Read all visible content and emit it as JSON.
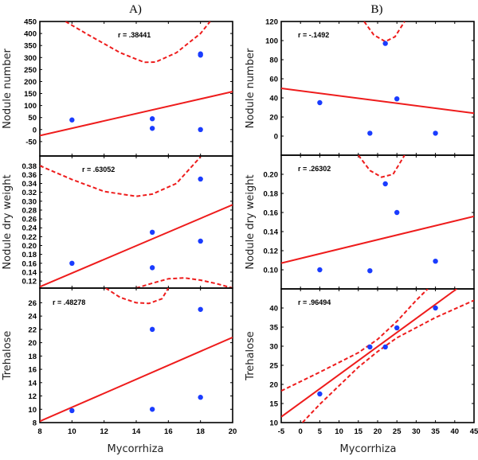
{
  "chart_data": {
    "type": "scatter",
    "columns": [
      {
        "title": "A)",
        "xlabel": "Mycorrhiza",
        "xlim": [
          8,
          20
        ],
        "xticks": [
          8,
          10,
          12,
          14,
          16,
          18,
          20
        ],
        "panels": [
          {
            "ylabel": "Nodule number",
            "ylim": [
              -110,
              450
            ],
            "yticks": [
              -50,
              0,
              50,
              100,
              150,
              200,
              250,
              300,
              350,
              400,
              450
            ],
            "r_label": "r = .38441",
            "points": [
              [
                10,
                40
              ],
              [
                15,
                45
              ],
              [
                15,
                5
              ],
              [
                18,
                315
              ],
              [
                18,
                310
              ],
              [
                18,
                0
              ]
            ],
            "fit_line": [
              [
                8,
                -25
              ],
              [
                20,
                158
              ]
            ],
            "ci_upper": [
              [
                9.6,
                450
              ],
              [
                11,
                395
              ],
              [
                13,
                320
              ],
              [
                14.5,
                280
              ],
              [
                15.2,
                281
              ],
              [
                16.5,
                320
              ],
              [
                18,
                400
              ],
              [
                18.6,
                450
              ]
            ],
            "ci_lower": []
          },
          {
            "ylabel": "Nodule dry weight",
            "ylim": [
              0.104,
              0.402
            ],
            "yticks": [
              0.12,
              0.14,
              0.16,
              0.18,
              0.2,
              0.22,
              0.24,
              0.26,
              0.28,
              0.3,
              0.32,
              0.34,
              0.36,
              0.38
            ],
            "tick_labels": [
              "0.12",
              "0.14",
              "0.16",
              "0.18",
              "0.20",
              "0.22",
              "0.24",
              "0.26",
              "0.28",
              "0.30",
              "0.32",
              "0.34",
              "0.36",
              "0.38"
            ],
            "r_label": "r = .63052",
            "points": [
              [
                10,
                0.16
              ],
              [
                15,
                0.23
              ],
              [
                15,
                0.15
              ],
              [
                18,
                0.35
              ],
              [
                18,
                0.21
              ]
            ],
            "fit_line": [
              [
                8,
                0.107
              ],
              [
                20,
                0.292
              ]
            ],
            "ci_upper": [
              [
                8,
                0.38
              ],
              [
                10,
                0.349
              ],
              [
                12,
                0.322
              ],
              [
                14,
                0.311
              ],
              [
                15,
                0.316
              ],
              [
                16.5,
                0.34
              ],
              [
                18,
                0.4
              ]
            ],
            "ci_lower": [
              [
                14,
                0.104
              ],
              [
                15,
                0.115
              ],
              [
                16,
                0.125
              ],
              [
                17,
                0.127
              ],
              [
                18,
                0.122
              ],
              [
                19,
                0.114
              ],
              [
                20,
                0.104
              ]
            ]
          },
          {
            "ylabel": "Trehalose",
            "ylim": [
              8,
              28.2
            ],
            "yticks": [
              8,
              10,
              12,
              14,
              16,
              18,
              20,
              22,
              24,
              26
            ],
            "r_label": "r = .48278",
            "points": [
              [
                10,
                9.8
              ],
              [
                15,
                22
              ],
              [
                15,
                10
              ],
              [
                18,
                25
              ],
              [
                18,
                11.8
              ]
            ],
            "fit_line": [
              [
                8,
                8.2
              ],
              [
                20,
                20.8
              ]
            ],
            "ci_upper": [
              [
                12.1,
                28.2
              ],
              [
                13,
                26.8
              ],
              [
                14,
                26.0
              ],
              [
                14.8,
                25.9
              ],
              [
                15.6,
                26.6
              ],
              [
                16,
                28.2
              ]
            ],
            "ci_lower": []
          }
        ]
      },
      {
        "title": "B)",
        "xlabel": "Mycorrhiza",
        "xlim": [
          -5,
          45
        ],
        "xticks": [
          -5,
          0,
          5,
          10,
          15,
          20,
          25,
          30,
          35,
          40,
          45
        ],
        "panels": [
          {
            "ylabel": "Nodule number",
            "ylim": [
              -20,
              120
            ],
            "yticks": [
              0,
              20,
              40,
              60,
              80,
              100,
              120
            ],
            "r_label": "r = -.1492",
            "points": [
              [
                5,
                35
              ],
              [
                18,
                3
              ],
              [
                22,
                97
              ],
              [
                25,
                39
              ],
              [
                35,
                3
              ]
            ],
            "fit_line": [
              [
                -5,
                50
              ],
              [
                45,
                24
              ]
            ],
            "ci_upper": [
              [
                16.5,
                120
              ],
              [
                19,
                106
              ],
              [
                22,
                99
              ],
              [
                24.5,
                104
              ],
              [
                27,
                120
              ]
            ],
            "ci_lower": []
          },
          {
            "ylabel": "Nodule dry weight",
            "ylim": [
              0.08,
              0.22
            ],
            "yticks": [
              0.1,
              0.12,
              0.14,
              0.16,
              0.18,
              0.2
            ],
            "tick_labels": [
              "0.10",
              "0.12",
              "0.14",
              "0.16",
              "0.18",
              "0.20"
            ],
            "r_label": "r = .26302",
            "points": [
              [
                5,
                0.1
              ],
              [
                18,
                0.099
              ],
              [
                22,
                0.19
              ],
              [
                25,
                0.16
              ],
              [
                35,
                0.109
              ]
            ],
            "fit_line": [
              [
                -5,
                0.107
              ],
              [
                45,
                0.156
              ]
            ],
            "ci_upper": [
              [
                15,
                0.22
              ],
              [
                18,
                0.204
              ],
              [
                21,
                0.197
              ],
              [
                24,
                0.2
              ],
              [
                27,
                0.22
              ]
            ],
            "ci_lower": []
          },
          {
            "ylabel": "Trehalose",
            "ylim": [
              10,
              45
            ],
            "yticks": [
              10,
              15,
              20,
              25,
              30,
              35,
              40
            ],
            "r_label": "r = .96494",
            "points": [
              [
                5,
                17.5
              ],
              [
                18,
                29.8
              ],
              [
                22,
                29.8
              ],
              [
                25,
                34.8
              ],
              [
                35,
                40
              ]
            ],
            "fit_line": [
              [
                -5,
                11.5
              ],
              [
                40.5,
                45
              ]
            ],
            "ci_upper": [
              [
                -5,
                18.3
              ],
              [
                5,
                23.2
              ],
              [
                15,
                28.3
              ],
              [
                20,
                31.8
              ],
              [
                25,
                36.5
              ],
              [
                30,
                42
              ],
              [
                33,
                45
              ]
            ],
            "ci_lower": [
              [
                0.5,
                10
              ],
              [
                5,
                14.8
              ],
              [
                15,
                24.5
              ],
              [
                20,
                28.6
              ],
              [
                25,
                32.2
              ],
              [
                35,
                37.5
              ],
              [
                45,
                42
              ]
            ]
          }
        ]
      }
    ]
  },
  "colors": {
    "points": "#1a3cff",
    "fit_line": "#ee1c1c",
    "ci_line": "#ee1c1c",
    "axes": "#000000"
  }
}
